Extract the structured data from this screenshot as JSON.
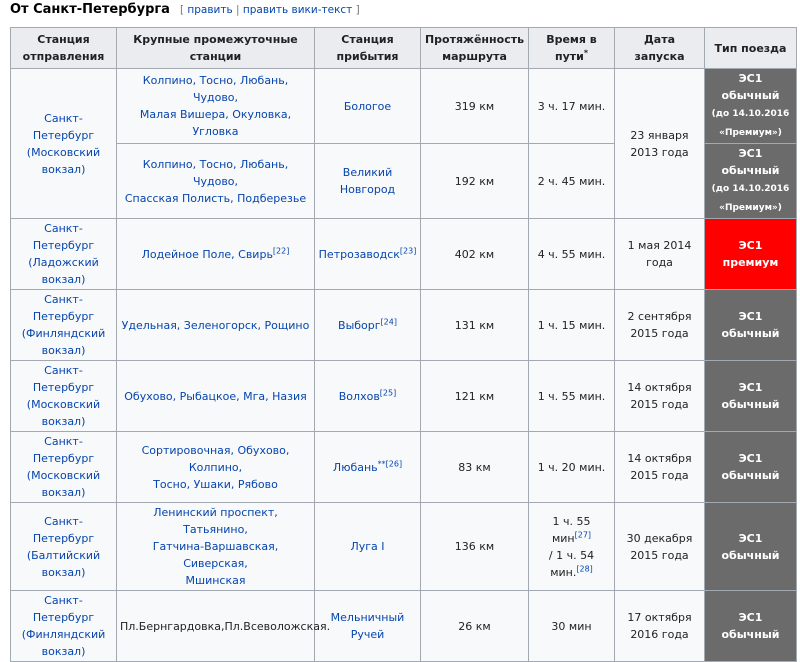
{
  "section": {
    "title": "От Санкт-Петербурга",
    "edit_open": "[",
    "edit_label": "править",
    "edit_separator": "|",
    "edit_source_label": "править вики-текст",
    "edit_close": "]"
  },
  "columns": {
    "departure": [
      "Станция",
      "отправления"
    ],
    "intermediate": [
      "Крупные промежуточные",
      "станции"
    ],
    "arrival": [
      "Станция",
      "прибытия"
    ],
    "length": [
      "Протяжённость",
      "маршрута"
    ],
    "time": [
      "Время в",
      "пути",
      "*"
    ],
    "launch": "Дата запуска",
    "train_type": "Тип поезда"
  },
  "colors": {
    "train_regular": "#6b6b6b",
    "train_premium": "#ff0000"
  },
  "rows": [
    {
      "departure": [
        "Санкт-Петербург",
        "(Московский",
        "вокзал)"
      ],
      "intermediate": [
        "Колпино, Тосно, Любань, Чудово,",
        "Малая Вишера, Окуловка, Угловка"
      ],
      "arrival": "Бологое",
      "length": "319 км",
      "time": "3 ч. 17 мин.",
      "launch": [
        "23 января",
        "2013 года"
      ],
      "train": [
        "ЭС1",
        "обычный",
        "(до 14.10.2016",
        "«Премиум»)"
      ]
    },
    {
      "intermediate": [
        "Колпино, Тосно, Любань, Чудово,",
        "Спасская Полисть, Подберезье"
      ],
      "arrival": "Великий Новгород",
      "length": "192 км",
      "time": "2 ч. 45 мин.",
      "train": [
        "ЭС1",
        "обычный",
        "(до 14.10.2016",
        "«Премиум»)"
      ]
    },
    {
      "departure": [
        "Санкт-Петербург",
        "(Ладожский",
        "вокзал)"
      ],
      "intermediate": "Лодейное Поле, Свирь",
      "intermediate_ref": "[22]",
      "arrival": "Петрозаводск",
      "arrival_ref": "[23]",
      "length": "402 км",
      "time": "4 ч. 55 мин.",
      "launch": [
        "1 мая 2014",
        "года"
      ],
      "train": [
        "ЭС1",
        "премиум"
      ]
    },
    {
      "departure": [
        "Санкт-Петербург",
        "(Финляндский",
        "вокзал)"
      ],
      "intermediate": "Удельная, Зеленогорск, Рощино",
      "arrival": "Выборг",
      "arrival_ref": "[24]",
      "length": "131 км",
      "time": "1 ч. 15 мин.",
      "launch": [
        "2 сентября",
        "2015 года"
      ],
      "train": [
        "ЭС1",
        "обычный"
      ]
    },
    {
      "departure": [
        "Санкт-Петербург",
        "(Московский",
        "вокзал)"
      ],
      "intermediate": "Обухово, Рыбацкое, Мга, Назия",
      "arrival": "Волхов",
      "arrival_ref": "[25]",
      "length": "121 км",
      "time": "1 ч. 55 мин.",
      "launch": [
        "14 октября",
        "2015 года"
      ],
      "train": [
        "ЭС1",
        "обычный"
      ]
    },
    {
      "departure": [
        "Санкт-Петербург",
        "(Московский",
        "вокзал)"
      ],
      "intermediate": [
        "Сортировочная, Обухово, Колпино,",
        "Тосно, Ушаки, Рябово"
      ],
      "arrival": "Любань",
      "arrival_ref": "**[26]",
      "length": "83 км",
      "time": "1 ч. 20 мин.",
      "launch": [
        "14 октября",
        "2015 года"
      ],
      "train": [
        "ЭС1",
        "обычный"
      ]
    },
    {
      "departure": [
        "Санкт-Петербург",
        "(Балтийский",
        "вокзал)"
      ],
      "intermediate": [
        "Ленинский проспект, Татьянино,",
        "Гатчина-Варшавская, Сиверская,",
        "Мшинская"
      ],
      "arrival": "Луга I",
      "length": "136 км",
      "time_parts": [
        "1 ч. 55 мин",
        "[27]",
        "/ 1 ч. 54",
        "мин.",
        "[28]"
      ],
      "launch": [
        "30 декабря",
        "2015 года"
      ],
      "train": [
        "ЭС1",
        "обычный"
      ]
    },
    {
      "departure": [
        "Санкт-Петербург",
        "(Финляндский",
        "вокзал)"
      ],
      "intermediate": "Пл.Бернгардовка,Пл.Всеволожская.",
      "arrival": [
        "Мельничный",
        "Ручей"
      ],
      "length": "26 км",
      "time": "30 мин",
      "launch": [
        "17 октября",
        "2016 года"
      ],
      "train": [
        "ЭС1",
        "обычный"
      ]
    }
  ]
}
